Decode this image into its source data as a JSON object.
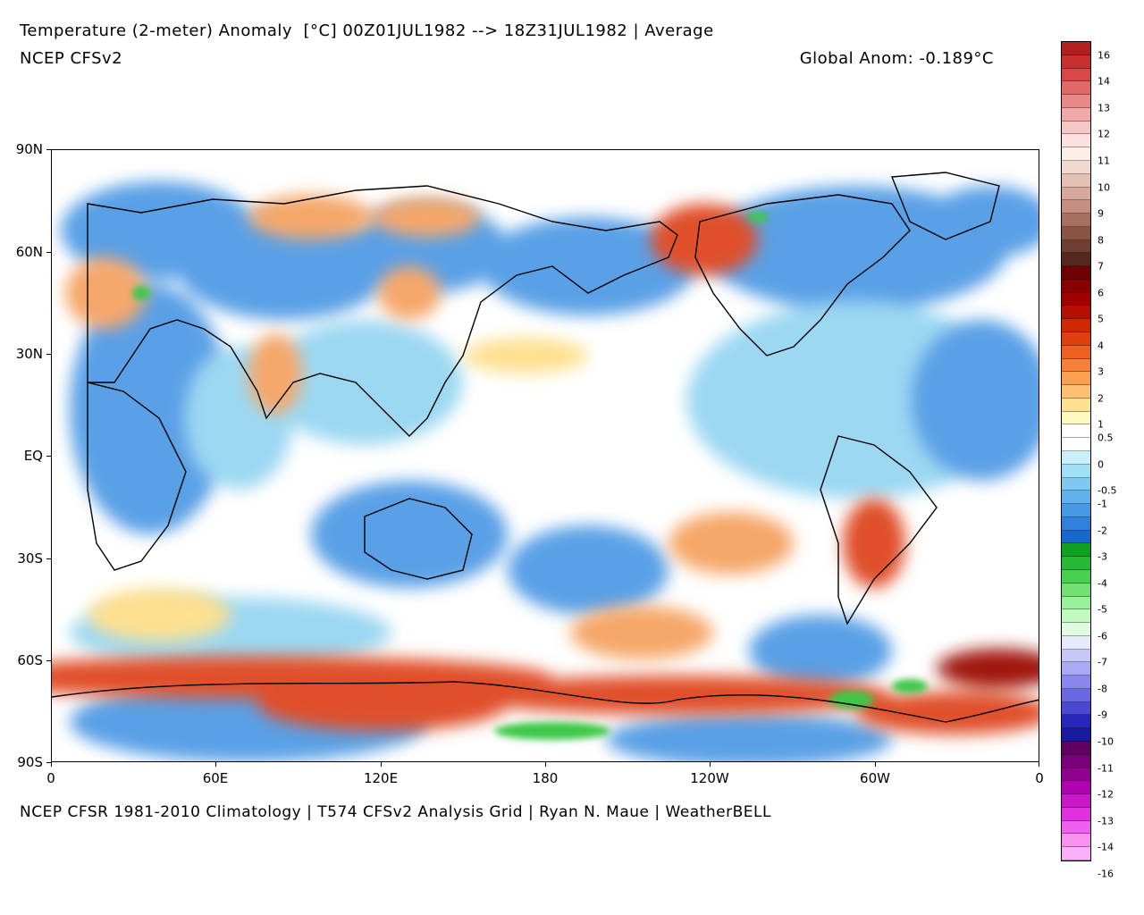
{
  "header": {
    "title": "Temperature (2-meter) Anomaly  [°C] 00Z01JUL1982 --> 18Z31JUL1982 | Average",
    "model": "NCEP CFSv2",
    "global_anom": "Global Anom: -0.189°C"
  },
  "footer": {
    "credit": "NCEP CFSR 1981-2010 Climatology | T574 CFSv2 Analysis Grid | Ryan N. Maue | WeatherBELL"
  },
  "axes": {
    "lat_labels": [
      "90N",
      "60N",
      "30N",
      "EQ",
      "30S",
      "60S",
      "90S"
    ],
    "lon_labels": [
      "0",
      "60E",
      "120E",
      "180",
      "120W",
      "60W",
      "0"
    ]
  },
  "colorbar": {
    "labels": [
      "16",
      "14",
      "13",
      "12",
      "11",
      "10",
      "9",
      "8",
      "7",
      "6",
      "5",
      "4",
      "3",
      "2",
      "1",
      "0.5",
      "0",
      "-0.5",
      "-1",
      "-2",
      "-3",
      "-4",
      "-5",
      "-6",
      "-7",
      "-8",
      "-9",
      "-10",
      "-11",
      "-12",
      "-13",
      "-14",
      "-16"
    ],
    "colors": [
      "#b02020",
      "#c83030",
      "#d84848",
      "#e06868",
      "#e88888",
      "#f0a8a8",
      "#f8c8c8",
      "#fde0e0",
      "#fbeee8",
      "#f1d9cf",
      "#e4c0b5",
      "#d6a89b",
      "#c48f80",
      "#a87060",
      "#8a5545",
      "#6e3e32",
      "#55281f",
      "#700000",
      "#880000",
      "#a00000",
      "#b81000",
      "#d02800",
      "#e04010",
      "#ee6020",
      "#f5803a",
      "#f8a050",
      "#fcc070",
      "#fde090",
      "#fff8c0",
      "#ffffff",
      "#ffffff",
      "#c8f0fa",
      "#a0e0f5",
      "#80c8f0",
      "#60b0ec",
      "#4898e6",
      "#3080dc",
      "#1868cc",
      "#10a020",
      "#28b838",
      "#48d050",
      "#70e070",
      "#98f098",
      "#c0f8c0",
      "#e0fce0",
      "#e8e8fc",
      "#c8c8f8",
      "#a8a8f4",
      "#8888ec",
      "#6868e0",
      "#4848d0",
      "#2828b8",
      "#1818a0",
      "#600060",
      "#780078",
      "#900090",
      "#b000b0",
      "#c818c8",
      "#e030e0",
      "#f060f0",
      "#f890f0",
      "#f8b0f8"
    ],
    "boundary_label_index": [
      0,
      2,
      4,
      6,
      8,
      10,
      12,
      14,
      16,
      18,
      20,
      22,
      24,
      26,
      28,
      29,
      31,
      33,
      34,
      36,
      38,
      40,
      42,
      44,
      46,
      48,
      50,
      52,
      54,
      56,
      58,
      60,
      62
    ]
  },
  "map": {
    "base_color": "#ffffff",
    "description_palette": {
      "cold": "#5aa0e6",
      "cool": "#9cd8f2",
      "warm": "#f6a76a",
      "hot": "#e0502a",
      "very_hot": "#a01808",
      "green": "#3cc848"
    }
  }
}
